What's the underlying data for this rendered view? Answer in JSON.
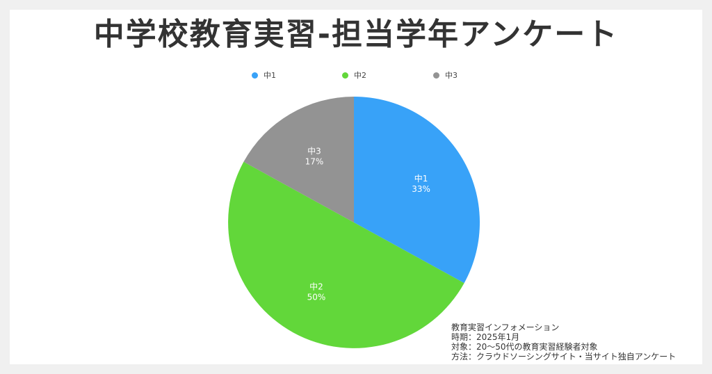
{
  "chart_data": {
    "type": "pie",
    "title": "中学校教育実習-担当学年アンケート",
    "categories": [
      "中1",
      "中2",
      "中3"
    ],
    "values": [
      33,
      50,
      17
    ],
    "labels": [
      "33%",
      "50%",
      "17%"
    ],
    "colors": [
      "#38a2f8",
      "#62d73a",
      "#939393"
    ],
    "legend_position": "top"
  },
  "info": {
    "line1": "教育実習インフォメーション",
    "line2": "時期：2025年1月",
    "line3": "対象：20～50代の教育実習経験者対象",
    "line4": "方法：クラウドソーシングサイト・当サイト独自アンケート"
  }
}
